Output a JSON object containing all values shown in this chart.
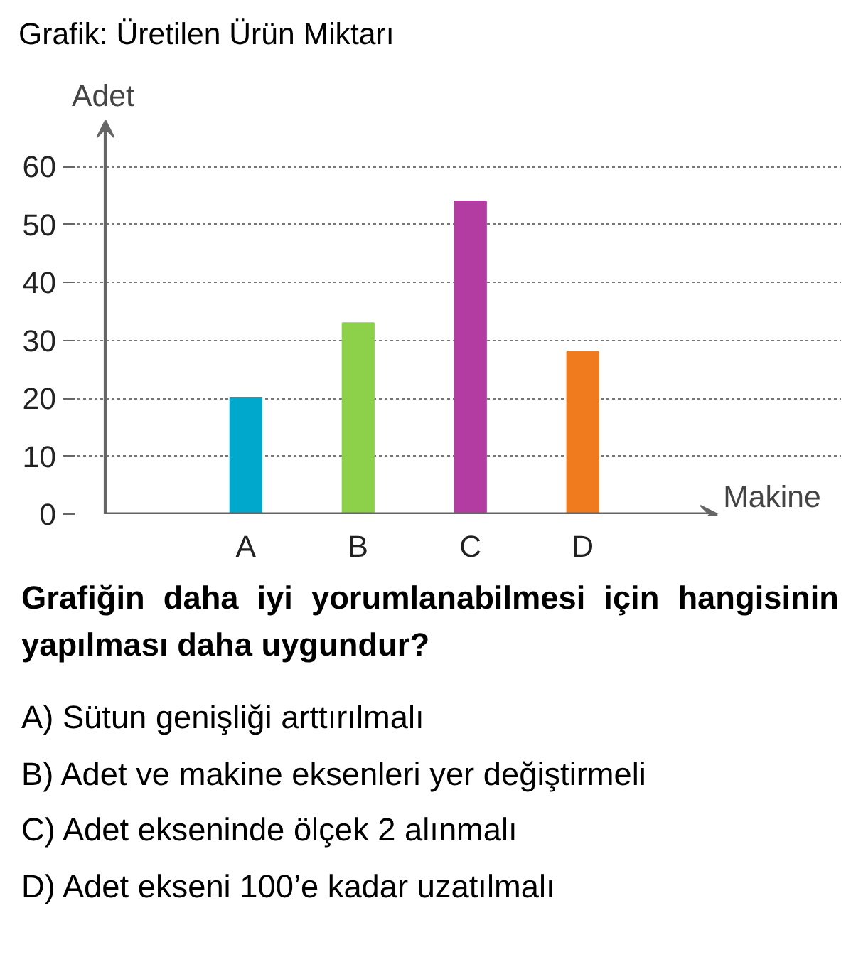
{
  "chart_data": {
    "type": "bar",
    "title": "Grafik: Üretilen Ürün Miktarı",
    "xlabel": "Makine",
    "ylabel": "Adet",
    "categories": [
      "A",
      "B",
      "C",
      "D"
    ],
    "values": [
      20,
      33,
      54,
      28
    ],
    "colors": [
      "#00a9cc",
      "#8dd14a",
      "#b23ca1",
      "#f07a1e"
    ],
    "ylim": [
      0,
      68
    ],
    "yticks": [
      0,
      10,
      20,
      30,
      40,
      50,
      60
    ],
    "grid": "y",
    "annotations": [
      "Grafiğin daha iyi yorumlanabilmesi için hangisinin yapılması daha uygundur?",
      "A) Sütun genişliği arttırılmalı",
      "B) Adet ve makine eksenleri yer değiştirmeli",
      "C) Adet ekseninde ölçek 2 alınmalı",
      "D) Adet ekseni 100’e kadar uzatılmalı"
    ]
  }
}
